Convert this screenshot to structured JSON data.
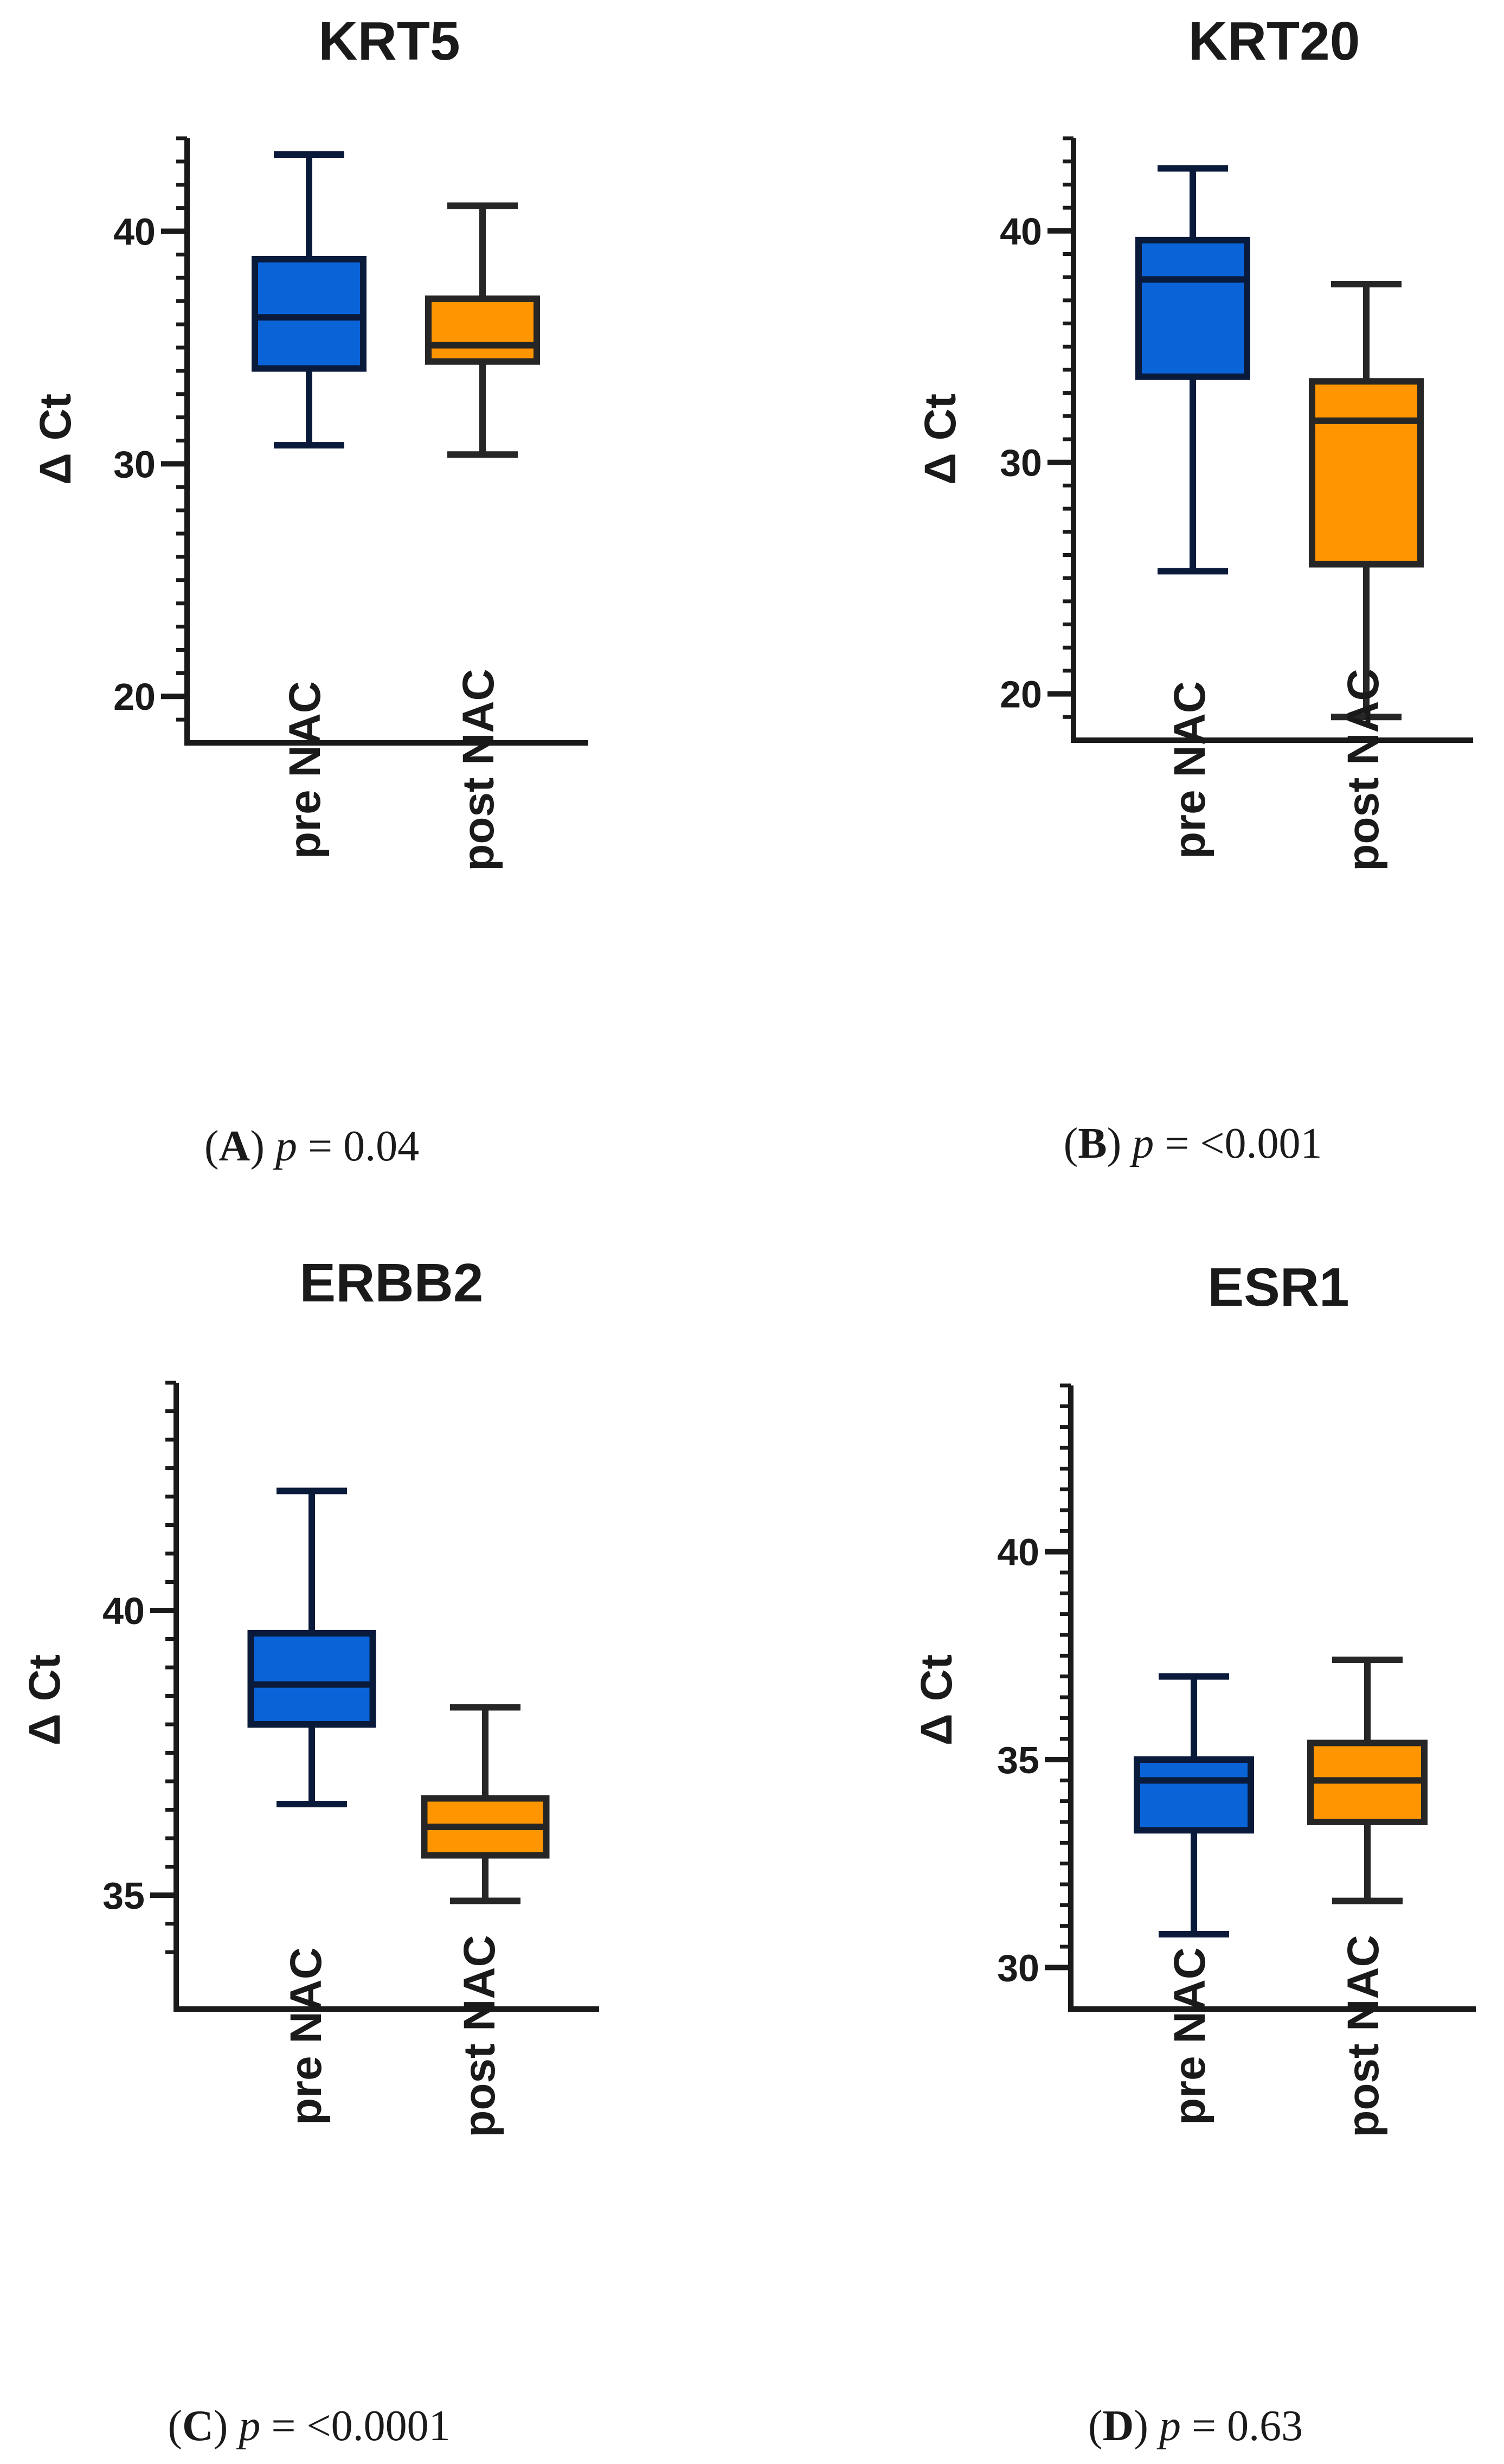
{
  "colors": {
    "pre": "#0a64d8",
    "post": "#ff9500",
    "pre_stroke": "#0a1a3a",
    "post_stroke": "#262626",
    "axis": "#1a1a1a"
  },
  "chart_data": [
    {
      "type": "box",
      "title": "KRT5",
      "ylabel": "Δ Ct",
      "ylim": [
        18,
        44
      ],
      "yticks": [
        20,
        30,
        40
      ],
      "minor_step": 1,
      "categories": [
        "pre NAC",
        "post NAC"
      ],
      "boxes": [
        {
          "name": "pre NAC",
          "min": 30.8,
          "q1": 34.1,
          "median": 36.3,
          "q3": 38.8,
          "max": 43.3
        },
        {
          "name": "post NAC",
          "min": 30.4,
          "q1": 34.4,
          "median": 35.1,
          "q3": 37.1,
          "max": 41.1
        }
      ],
      "caption": {
        "letter": "A",
        "p_symbol": "p",
        "p_text": " = 0.04"
      }
    },
    {
      "type": "box",
      "title": "KRT20",
      "ylabel": "Δ Ct",
      "ylim": [
        18,
        44
      ],
      "yticks": [
        20,
        30,
        40
      ],
      "minor_step": 1,
      "categories": [
        "pre NAC",
        "post NAC"
      ],
      "boxes": [
        {
          "name": "pre NAC",
          "min": 25.3,
          "q1": 33.7,
          "median": 37.9,
          "q3": 39.6,
          "max": 42.7
        },
        {
          "name": "post NAC",
          "min": 19.0,
          "q1": 25.6,
          "median": 31.8,
          "q3": 33.5,
          "max": 37.7
        }
      ],
      "caption": {
        "letter": "B",
        "p_symbol": "p",
        "p_text": " = <0.001"
      }
    },
    {
      "type": "box",
      "title": "ERBB2",
      "ylabel": "Δ Ct",
      "ylim": [
        33,
        44
      ],
      "yticks": [
        35,
        40
      ],
      "minor_step": 0.5,
      "categories": [
        "pre NAC",
        "post NAC"
      ],
      "boxes": [
        {
          "name": "pre NAC",
          "min": 36.6,
          "q1": 38.0,
          "median": 38.7,
          "q3": 39.6,
          "max": 42.1
        },
        {
          "name": "post NAC",
          "min": 34.9,
          "q1": 35.7,
          "median": 36.2,
          "q3": 36.7,
          "max": 38.3
        }
      ],
      "caption": {
        "letter": "C",
        "p_symbol": "p",
        "p_text": " = <0.0001"
      }
    },
    {
      "type": "box",
      "title": "ESR1",
      "ylabel": "Δ Ct",
      "ylim": [
        29,
        44
      ],
      "yticks": [
        30,
        35,
        40
      ],
      "minor_step": 0.5,
      "categories": [
        "pre NAC",
        "post NAC"
      ],
      "boxes": [
        {
          "name": "pre NAC",
          "min": 30.8,
          "q1": 33.3,
          "median": 34.5,
          "q3": 35.0,
          "max": 37.0
        },
        {
          "name": "post NAC",
          "min": 31.6,
          "q1": 33.5,
          "median": 34.5,
          "q3": 35.4,
          "max": 37.4
        }
      ],
      "caption": {
        "letter": "D",
        "p_symbol": "p",
        "p_text": " = 0.63"
      }
    }
  ]
}
